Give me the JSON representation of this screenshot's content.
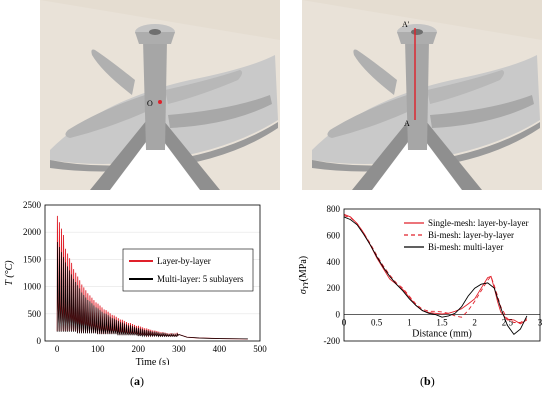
{
  "renders": {
    "left_point_label": "O",
    "right_top_label": "A'",
    "right_bottom_label": "A",
    "colors": {
      "background": "#e5ddd1",
      "part": "#a9a9a9",
      "part_light": "#c7c7c7",
      "shadow": "#8c8c8c",
      "marker": "#e0202a"
    }
  },
  "captions": {
    "a": "(a)",
    "b": "(b)",
    "a_letter": "a",
    "b_letter": "b"
  },
  "chart_data": [
    {
      "type": "line",
      "xlabel": "Time (s)",
      "ylabel": "T (°C)",
      "xlim": [
        -30,
        500
      ],
      "ylim": [
        0,
        2500
      ],
      "xticks": [
        0,
        100,
        200,
        300,
        400,
        500
      ],
      "yticks": [
        0,
        500,
        1000,
        1500,
        2000,
        2500
      ],
      "legend": "center-right",
      "series": [
        {
          "name": "Layer-by-layer",
          "color": "#e0202a",
          "peaks": [
            2300,
            1700,
            1330,
            1050,
            850,
            700,
            580,
            480,
            400,
            340,
            290,
            240,
            200,
            170,
            150
          ],
          "baseline": [
            180,
            150,
            130,
            110,
            95,
            90
          ]
        },
        {
          "name": "Multi-layer: 5 sublayers",
          "color": "#000000",
          "peaks": [
            1820,
            1450,
            1150,
            900,
            740,
            610,
            510,
            420,
            350,
            300,
            250,
            210,
            180,
            160,
            140
          ],
          "baseline": [
            170,
            140,
            125,
            105,
            90,
            85
          ]
        }
      ],
      "tail": {
        "x": [
          300,
          320,
          350,
          400,
          450,
          470
        ],
        "y": [
          120,
          70,
          55,
          45,
          40,
          38
        ]
      }
    },
    {
      "type": "line",
      "xlabel": "Distance (mm)",
      "ylabel": "σ_YY (MPa)",
      "ylabel_main": "σ",
      "ylabel_sub": "YY",
      "ylabel_unit": "(MPa)",
      "xlim": [
        0,
        3
      ],
      "ylim": [
        -200,
        800
      ],
      "xticks": [
        0,
        0.5,
        1,
        1.5,
        2,
        2.5,
        3
      ],
      "xtick_labels": [
        "0",
        "0.5",
        "1",
        "1.5",
        "2",
        "2.5",
        "3"
      ],
      "yticks": [
        -200,
        0,
        200,
        400,
        600,
        800
      ],
      "legend": "top-right",
      "series": [
        {
          "name": "Single-mesh: layer-by-layer",
          "color": "#e0202a",
          "dash": "none",
          "x": [
            0,
            0.1,
            0.2,
            0.3,
            0.4,
            0.5,
            0.6,
            0.7,
            0.8,
            0.85,
            0.9,
            1.0,
            1.1,
            1.2,
            1.3,
            1.4,
            1.5,
            1.6,
            1.7,
            1.8,
            1.9,
            2.0,
            2.1,
            2.2,
            2.25,
            2.3,
            2.35,
            2.4,
            2.5,
            2.6,
            2.7,
            2.8
          ],
          "y": [
            760,
            740,
            690,
            620,
            530,
            430,
            350,
            270,
            230,
            210,
            190,
            130,
            70,
            30,
            15,
            10,
            5,
            10,
            25,
            45,
            80,
            120,
            200,
            280,
            290,
            200,
            100,
            20,
            -40,
            -40,
            -70,
            -40
          ]
        },
        {
          "name": "Bi-mesh: layer-by-layer",
          "color": "#e0202a",
          "dash": "4,3",
          "x": [
            0,
            0.1,
            0.2,
            0.3,
            0.4,
            0.5,
            0.6,
            0.7,
            0.8,
            0.9,
            1.0,
            1.1,
            1.2,
            1.3,
            1.4,
            1.5,
            1.6,
            1.7,
            1.8,
            1.9,
            2.0,
            2.1,
            2.2,
            2.25,
            2.3,
            2.4,
            2.5,
            2.6,
            2.7,
            2.8
          ],
          "y": [
            750,
            735,
            690,
            620,
            540,
            450,
            370,
            300,
            240,
            200,
            140,
            80,
            40,
            25,
            25,
            20,
            10,
            -10,
            -20,
            30,
            100,
            180,
            260,
            290,
            220,
            60,
            -30,
            -60,
            -60,
            -30
          ]
        },
        {
          "name": "Bi-mesh: multi-layer",
          "color": "#000000",
          "dash": "none",
          "x": [
            0,
            0.1,
            0.2,
            0.3,
            0.4,
            0.5,
            0.6,
            0.7,
            0.8,
            0.9,
            1.0,
            1.1,
            1.2,
            1.3,
            1.4,
            1.5,
            1.6,
            1.7,
            1.8,
            1.9,
            2.0,
            2.1,
            2.2,
            2.3,
            2.4,
            2.5,
            2.6,
            2.7,
            2.8
          ],
          "y": [
            740,
            720,
            680,
            610,
            530,
            440,
            360,
            290,
            230,
            180,
            120,
            70,
            30,
            10,
            0,
            -20,
            -10,
            10,
            60,
            140,
            200,
            230,
            240,
            200,
            50,
            -80,
            -150,
            -110,
            -10
          ]
        }
      ]
    }
  ]
}
